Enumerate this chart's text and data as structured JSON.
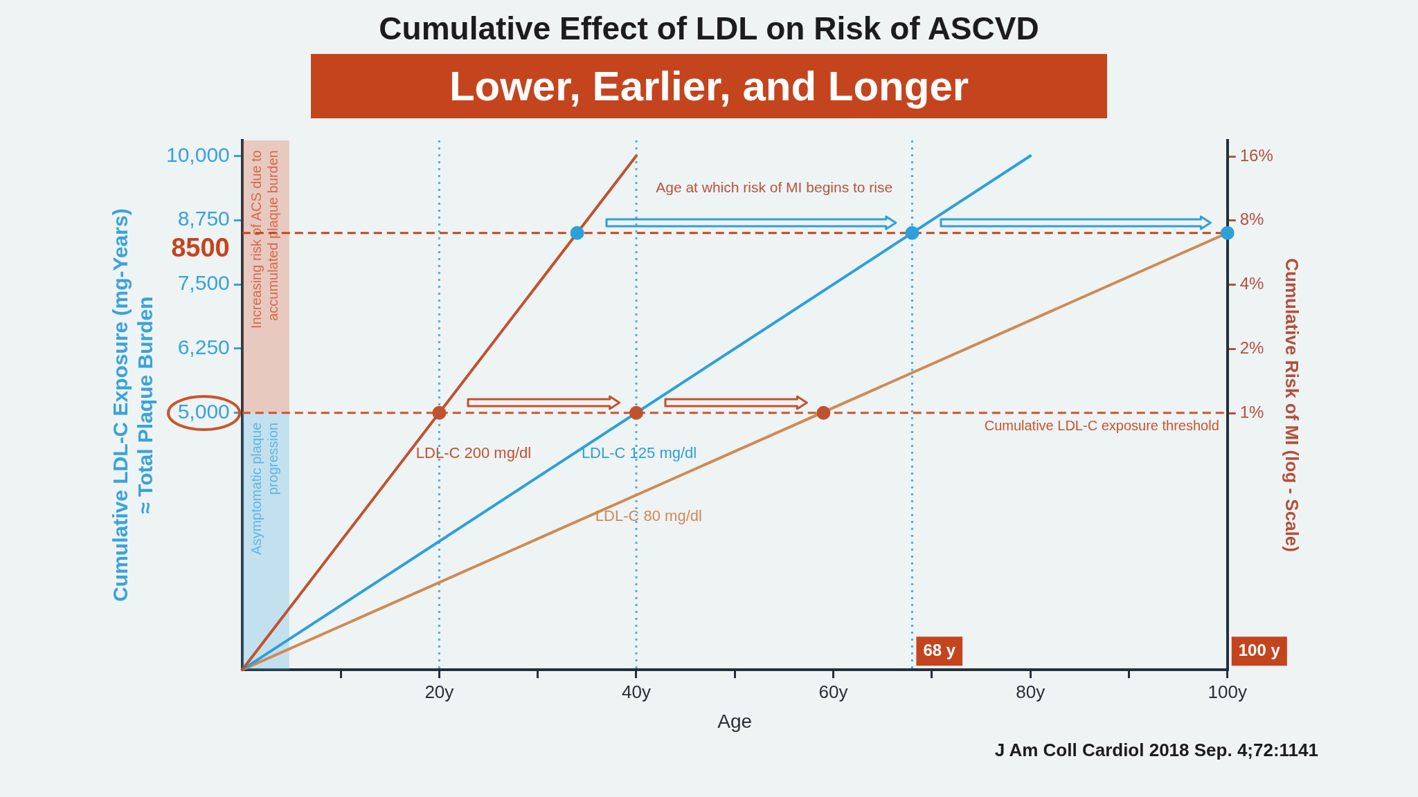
{
  "chart_data": {
    "type": "line",
    "title": "Cumulative Effect of LDL on Risk of ASCVD",
    "subtitle": "Lower, Earlier, and Longer",
    "xlabel": "Age",
    "ylabel": "Cumulative LDL-C Exposure (mg-Years)\n≈ Total Plaque Burden",
    "y2label": "Cumulative Risk of MI (log - Scale)",
    "series": [
      {
        "name": "LDL-C 200 mg/dl",
        "color": "#c0522f",
        "x": [
          0,
          40
        ],
        "values": [
          0,
          10000
        ]
      },
      {
        "name": "LDL-C 125 mg/dl",
        "color": "#2f9fd8",
        "x": [
          0,
          80
        ],
        "values": [
          0,
          10000
        ]
      },
      {
        "name": "LDL-C 80 mg/dl",
        "color": "#cf8a55",
        "x": [
          0,
          100
        ],
        "values": [
          0,
          8500
        ]
      },
      {
        "type": "scatter",
        "marker": "circle",
        "x": [
          20,
          40,
          59,
          34,
          68,
          100
        ],
        "values": [
          5000,
          5000,
          5000,
          8500,
          8500,
          8500
        ],
        "colors": [
          "#c0522f",
          "#c0522f",
          "#c0522f",
          "#2f9fd8",
          "#2f9fd8",
          "#2f9fd8"
        ]
      }
    ],
    "xlim": [
      0,
      100
    ],
    "xticks": [
      {
        "value": 10,
        "label": null
      },
      {
        "value": 20,
        "label": "20y"
      },
      {
        "value": 30,
        "label": null
      },
      {
        "value": 40,
        "label": "40y"
      },
      {
        "value": 50,
        "label": null
      },
      {
        "value": 60,
        "label": "60y"
      },
      {
        "value": 70,
        "label": null
      },
      {
        "value": 80,
        "label": "80y"
      },
      {
        "value": 90,
        "label": null
      },
      {
        "value": 100,
        "label": "100y"
      }
    ],
    "ylim": [
      0,
      10300
    ],
    "yticks": [
      {
        "value": 5000,
        "label": "5,000"
      },
      {
        "value": 6250,
        "label": "6,250"
      },
      {
        "value": 7500,
        "label": "7,500"
      },
      {
        "value": 8750,
        "label": "8,750"
      },
      {
        "value": 10000,
        "label": "10,000"
      }
    ],
    "y2lim": [
      0.0625,
      19
    ],
    "y2ticks": [
      {
        "value": 1,
        "label": "1%"
      },
      {
        "value": 2,
        "label": "2%"
      },
      {
        "value": 4,
        "label": "4%"
      },
      {
        "value": 8,
        "label": "8%"
      },
      {
        "value": 16,
        "label": "16%"
      }
    ],
    "log": "y2",
    "bands": [
      {
        "axis": "y",
        "from": 0,
        "to": 5000,
        "label": "Asymptomatic plaque progression",
        "color": "#5fb6e3"
      },
      {
        "axis": "y",
        "from": 5000,
        "to": 10300,
        "label": "Increasing risk of ACS due to accumulated plaque burden",
        "color": "#d8694a"
      }
    ],
    "ref_lines": [
      {
        "axis": "y",
        "value": 5000,
        "label": "Cumulative LDL-C exposure threshold",
        "color": "#c8552f",
        "line_style": "dashed"
      },
      {
        "axis": "y",
        "value": 8500,
        "label": "8500",
        "color": "#c4441e",
        "line_style": "dashed"
      },
      {
        "axis": "x",
        "value": 20,
        "color": "#4aaee0",
        "line_style": "dotted"
      },
      {
        "axis": "x",
        "value": 40,
        "color": "#4aaee0",
        "line_style": "dotted"
      },
      {
        "axis": "x",
        "value": 68,
        "label": "68 y",
        "color": "#4aaee0",
        "line_style": "dotted"
      }
    ],
    "annotations": [
      "Age at which risk of MI begins to rise",
      "100 y",
      "J Am Coll Cardiol 2018 Sep. 4;72:1141"
    ]
  }
}
